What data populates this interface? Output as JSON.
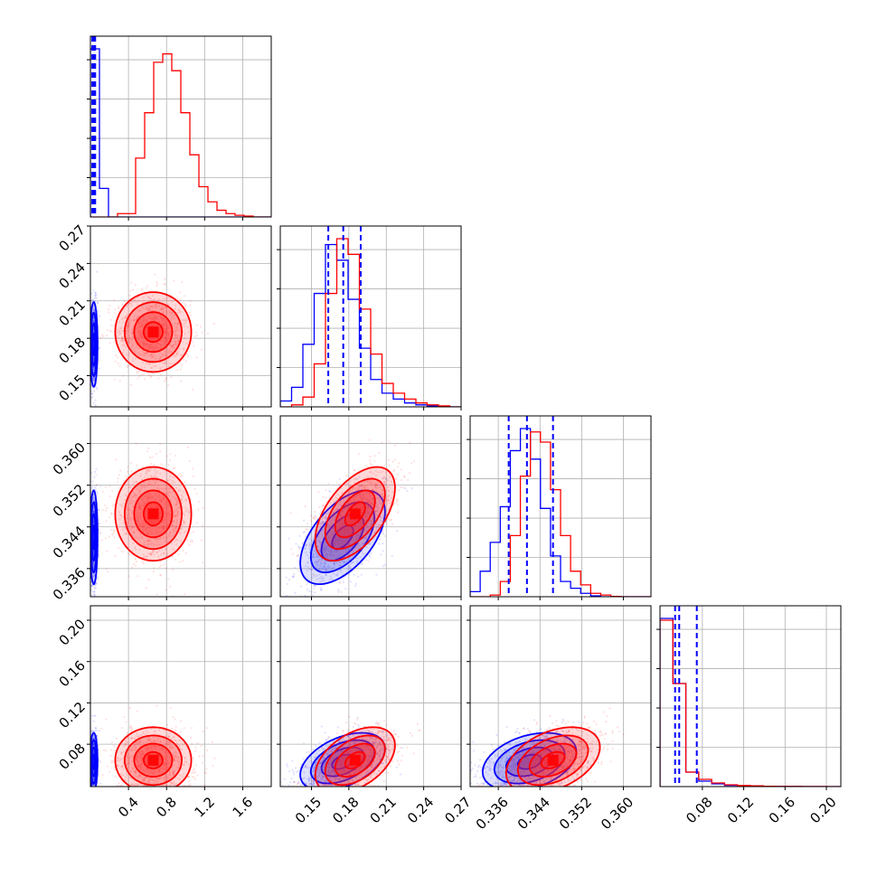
{
  "chart_data": {
    "type": "corner",
    "parameters": 4,
    "series_colors": {
      "red": "#ff0000",
      "blue": "#0000ff"
    },
    "axes": [
      {
        "range": [
          0,
          1.9
        ],
        "ticks": [
          "0.4",
          "0.8",
          "1.2",
          "1.6"
        ],
        "tick_values": [
          0.4,
          0.8,
          1.2,
          1.6
        ]
      },
      {
        "range": [
          0.125,
          0.27
        ],
        "ticks": [
          "0.15",
          "0.18",
          "0.21",
          "0.24",
          "0.27"
        ],
        "tick_values": [
          0.15,
          0.18,
          0.21,
          0.24,
          0.27
        ]
      },
      {
        "range": [
          0.3306,
          0.3653
        ],
        "ticks": [
          "0.336",
          "0.344",
          "0.352",
          "0.360"
        ],
        "tick_values": [
          0.336,
          0.344,
          0.352,
          0.36
        ]
      },
      {
        "range": [
          0.039,
          0.214
        ],
        "ticks": [
          "0.08",
          "0.12",
          "0.16",
          "0.20"
        ],
        "tick_values": [
          0.08,
          0.12,
          0.16,
          0.2
        ]
      }
    ],
    "histograms": [
      {
        "red_values": [
          0,
          0,
          0,
          0.02,
          0.02,
          0.35,
          0.62,
          0.92,
          0.97,
          0.87,
          0.62,
          0.37,
          0.18,
          0.09,
          0.04,
          0.02,
          0.01,
          0.005,
          0,
          0
        ],
        "blue_values": [
          1.0,
          0.17,
          0,
          0,
          0,
          0,
          0,
          0,
          0,
          0,
          0,
          0,
          0,
          0,
          0,
          0,
          0,
          0,
          0,
          0
        ],
        "quantiles": [
          0.02,
          0.035,
          0.05
        ]
      },
      {
        "red_values": [
          0,
          0.01,
          0.05,
          0.22,
          0.58,
          0.86,
          0.78,
          0.5,
          0.27,
          0.12,
          0.07,
          0.04,
          0.02,
          0.01,
          0.005,
          0
        ],
        "blue_values": [
          0.03,
          0.1,
          0.32,
          0.58,
          0.83,
          0.75,
          0.55,
          0.3,
          0.14,
          0.07,
          0.04,
          0.02,
          0.01,
          0.005,
          0.002,
          0
        ],
        "quantiles": [
          0.1635,
          0.1755,
          0.1895
        ]
      },
      {
        "red_values": [
          0,
          0,
          0.01,
          0.09,
          0.36,
          0.71,
          0.97,
          0.91,
          0.63,
          0.36,
          0.15,
          0.07,
          0.02,
          0.01,
          0.002,
          0,
          0,
          0
        ],
        "blue_values": [
          0.03,
          0.15,
          0.32,
          0.53,
          0.86,
          0.99,
          0.81,
          0.52,
          0.24,
          0.09,
          0.05,
          0.02,
          0.005,
          0,
          0,
          0,
          0,
          0
        ],
        "quantiles": [
          0.338,
          0.3415,
          0.3465
        ]
      },
      {
        "red_values": [
          0.92,
          0.57,
          0.08,
          0.04,
          0.02,
          0.01,
          0.006,
          0.004,
          0.002,
          0.001,
          0.001,
          0.0005,
          0.0002,
          0
        ],
        "blue_values": [
          0.93,
          0.57,
          0.08,
          0.03,
          0.015,
          0.007,
          0.004,
          0.002,
          0.001,
          0.0005,
          0.0002,
          0,
          0,
          0
        ],
        "quantiles": [
          0.0536,
          0.0576,
          0.0746
        ]
      }
    ],
    "joint": {
      "red": {
        "means": [
          0.66,
          0.185,
          0.3465,
          0.0645
        ],
        "sds": [
          0.2,
          0.016,
          0.0045,
          0.016
        ],
        "corr": [
          [
            1,
            0,
            0,
            0
          ],
          [
            0,
            1,
            0.55,
            0.45
          ],
          [
            0,
            0.55,
            1,
            0.4
          ],
          [
            0,
            0.45,
            0.4,
            1
          ]
        ]
      },
      "blue": {
        "means": [
          0.035,
          0.175,
          0.342,
          0.063
        ],
        "sds": [
          0.02,
          0.017,
          0.0045,
          0.014
        ],
        "corr": [
          [
            1,
            0,
            0,
            0
          ],
          [
            0,
            1,
            0.55,
            0.45
          ],
          [
            0,
            0.55,
            1,
            0.35
          ],
          [
            0,
            0.45,
            0.35,
            1
          ]
        ]
      },
      "contour_levels_sd": [
        0.5,
        1.0,
        1.5,
        2.0
      ]
    }
  }
}
